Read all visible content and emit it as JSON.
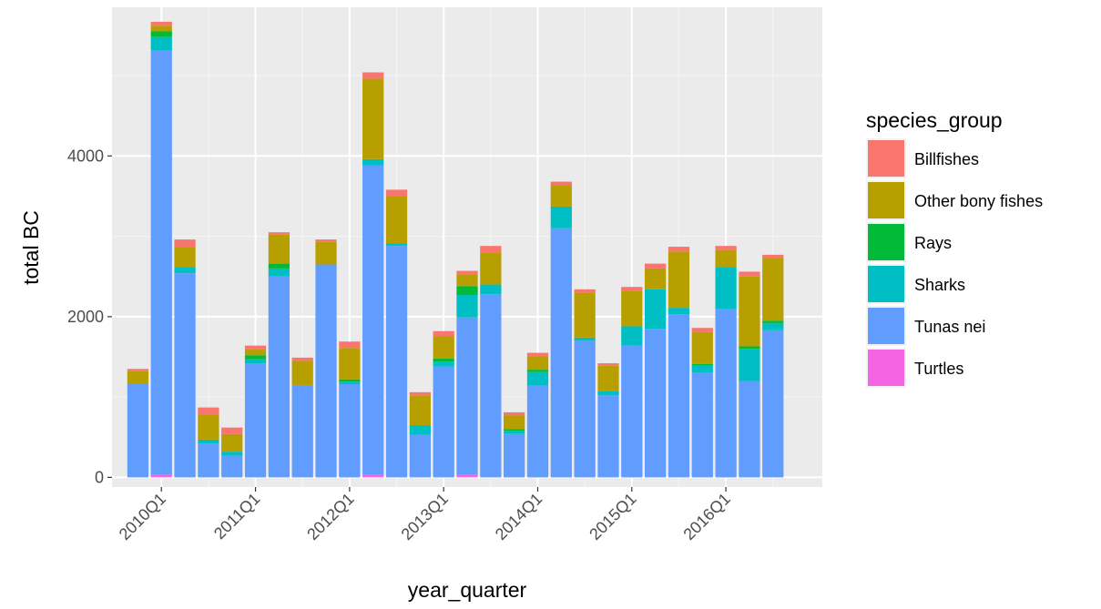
{
  "chart_data": {
    "type": "bar",
    "stacked": true,
    "xlabel": "year_quarter",
    "ylabel": "total BC",
    "ylim": [
      -120,
      5850
    ],
    "yticks": [
      0,
      2000,
      4000
    ],
    "ytick_labels": [
      "0",
      "2000",
      "4000"
    ],
    "x_tick_labels": [
      "2010Q1",
      "2011Q1",
      "2012Q1",
      "2013Q1",
      "2014Q1",
      "2015Q1",
      "2016Q1"
    ],
    "x_tick_categories": [
      "2010Q1",
      "2011Q1",
      "2012Q1",
      "2013Q1",
      "2014Q1",
      "2015Q1",
      "2016Q1"
    ],
    "background": "#ebebeb",
    "grid": true,
    "legend": {
      "title": "species_group",
      "position": "right"
    },
    "categories": [
      "2009Q4",
      "2010Q1",
      "2010Q2",
      "2010Q3",
      "2010Q4",
      "2011Q1",
      "2011Q2",
      "2011Q3",
      "2011Q4",
      "2012Q1",
      "2012Q2",
      "2012Q3",
      "2012Q4",
      "2013Q1",
      "2013Q2",
      "2013Q3",
      "2013Q4",
      "2014Q1",
      "2014Q2",
      "2014Q3",
      "2014Q4",
      "2015Q1",
      "2015Q2",
      "2015Q3",
      "2015Q4",
      "2016Q1",
      "2016Q2",
      "2016Q3",
      "2016Q4"
    ],
    "series": [
      {
        "name": "Turtles",
        "color": "#f564e3",
        "values": [
          0,
          30,
          0,
          0,
          0,
          0,
          0,
          0,
          0,
          0,
          30,
          0,
          0,
          0,
          30,
          0,
          0,
          0,
          0,
          0,
          0,
          0,
          0,
          0,
          0,
          0,
          0,
          0,
          0
        ]
      },
      {
        "name": "Tunas nei",
        "color": "#619cff",
        "values": [
          1160,
          5280,
          2540,
          420,
          270,
          1420,
          2500,
          1150,
          2650,
          1160,
          3850,
          2880,
          530,
          1380,
          1960,
          2280,
          540,
          1140,
          3100,
          1700,
          1020,
          1640,
          1850,
          2030,
          1300,
          2100,
          1200,
          1830,
          0
        ]
      },
      {
        "name": "Sharks",
        "color": "#00bfc4",
        "values": [
          0,
          170,
          80,
          50,
          50,
          50,
          100,
          0,
          0,
          30,
          80,
          30,
          120,
          60,
          280,
          120,
          40,
          170,
          270,
          40,
          50,
          240,
          490,
          80,
          90,
          520,
          400,
          90,
          0
        ]
      },
      {
        "name": "Rays",
        "color": "#00ba38",
        "values": [
          0,
          70,
          0,
          0,
          0,
          50,
          60,
          0,
          0,
          30,
          0,
          0,
          0,
          40,
          110,
          0,
          20,
          30,
          0,
          0,
          0,
          0,
          0,
          0,
          20,
          0,
          30,
          30,
          0
        ]
      },
      {
        "name": "Other bony fishes",
        "color": "#b79f00",
        "values": [
          160,
          70,
          250,
          310,
          220,
          70,
          360,
          300,
          280,
          390,
          1000,
          590,
          370,
          280,
          140,
          400,
          170,
          160,
          270,
          560,
          320,
          440,
          260,
          700,
          400,
          210,
          870,
          780,
          0
        ]
      },
      {
        "name": "Billfishes",
        "color": "#f8766d",
        "values": [
          30,
          50,
          90,
          90,
          80,
          50,
          30,
          40,
          30,
          80,
          80,
          80,
          40,
          60,
          50,
          80,
          40,
          50,
          40,
          40,
          30,
          50,
          60,
          60,
          50,
          50,
          60,
          40,
          0
        ]
      }
    ],
    "legend_order": [
      "Billfishes",
      "Other bony fishes",
      "Rays",
      "Sharks",
      "Tunas nei",
      "Turtles"
    ]
  }
}
